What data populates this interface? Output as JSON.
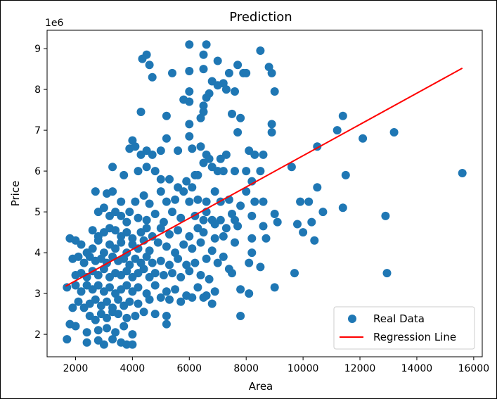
{
  "chart_data": {
    "type": "scatter",
    "title": "Prediction",
    "xlabel": "Area",
    "ylabel": "Price",
    "y_offset_label": "1e6",
    "xlim": [
      1000,
      16300
    ],
    "ylim": [
      1.45,
      9.45
    ],
    "x_ticks": [
      2000,
      4000,
      6000,
      8000,
      10000,
      12000,
      14000,
      16000
    ],
    "y_ticks": [
      2,
      3,
      4,
      5,
      6,
      7,
      8,
      9
    ],
    "grid": false,
    "legend_position": "lower-right",
    "colors": {
      "points": "#1f77b4",
      "line": "#ff0000"
    },
    "series": [
      {
        "name": "Real Data",
        "kind": "scatter",
        "points": [
          [
            6000,
            9.1
          ],
          [
            6600,
            9.1
          ],
          [
            4500,
            8.85
          ],
          [
            6500,
            8.85
          ],
          [
            4350,
            8.75
          ],
          [
            4600,
            8.6
          ],
          [
            7000,
            8.7
          ],
          [
            8500,
            8.95
          ],
          [
            7700,
            8.6
          ],
          [
            7400,
            8.4
          ],
          [
            7900,
            8.4
          ],
          [
            8800,
            8.55
          ],
          [
            8900,
            8.4
          ],
          [
            8000,
            8.4
          ],
          [
            4700,
            8.3
          ],
          [
            5400,
            8.4
          ],
          [
            6000,
            8.45
          ],
          [
            6500,
            8.5
          ],
          [
            6800,
            8.2
          ],
          [
            7200,
            8.15
          ],
          [
            6000,
            7.95
          ],
          [
            6700,
            7.9
          ],
          [
            5800,
            7.75
          ],
          [
            6000,
            7.7
          ],
          [
            6600,
            7.8
          ],
          [
            6500,
            7.6
          ],
          [
            7000,
            8.1
          ],
          [
            9000,
            7.95
          ],
          [
            7300,
            8.0
          ],
          [
            7600,
            7.95
          ],
          [
            4300,
            7.45
          ],
          [
            5200,
            7.35
          ],
          [
            6000,
            7.15
          ],
          [
            6500,
            7.45
          ],
          [
            6400,
            7.3
          ],
          [
            7500,
            7.4
          ],
          [
            7800,
            7.3
          ],
          [
            8900,
            7.15
          ],
          [
            8900,
            6.95
          ],
          [
            7700,
            6.95
          ],
          [
            4300,
            6.4
          ],
          [
            3900,
            6.55
          ],
          [
            4000,
            6.75
          ],
          [
            4100,
            6.6
          ],
          [
            4500,
            6.5
          ],
          [
            4700,
            6.4
          ],
          [
            5000,
            6.5
          ],
          [
            5200,
            6.8
          ],
          [
            5600,
            6.5
          ],
          [
            6000,
            6.85
          ],
          [
            6100,
            6.55
          ],
          [
            6400,
            6.6
          ],
          [
            6600,
            6.4
          ],
          [
            6700,
            6.3
          ],
          [
            7000,
            6.0
          ],
          [
            7100,
            6.3
          ],
          [
            7300,
            6.4
          ],
          [
            8100,
            6.5
          ],
          [
            8300,
            6.4
          ],
          [
            8600,
            6.4
          ],
          [
            3300,
            6.1
          ],
          [
            3700,
            5.9
          ],
          [
            4200,
            6.0
          ],
          [
            4500,
            6.1
          ],
          [
            4800,
            6.0
          ],
          [
            5000,
            5.8
          ],
          [
            5300,
            5.8
          ],
          [
            5600,
            5.6
          ],
          [
            5900,
            5.75
          ],
          [
            6100,
            5.6
          ],
          [
            6200,
            5.9
          ],
          [
            6300,
            5.9
          ],
          [
            6500,
            6.2
          ],
          [
            6800,
            6.1
          ],
          [
            7200,
            6.0
          ],
          [
            7600,
            6.0
          ],
          [
            8000,
            6.0
          ],
          [
            8200,
            5.75
          ],
          [
            8500,
            6.0
          ],
          [
            2700,
            5.5
          ],
          [
            3100,
            5.45
          ],
          [
            3300,
            5.5
          ],
          [
            3600,
            5.25
          ],
          [
            3900,
            5.0
          ],
          [
            4100,
            5.25
          ],
          [
            4400,
            5.4
          ],
          [
            4600,
            5.2
          ],
          [
            5000,
            5.5
          ],
          [
            5200,
            5.25
          ],
          [
            5500,
            5.3
          ],
          [
            5800,
            5.5
          ],
          [
            6000,
            5.25
          ],
          [
            6300,
            5.3
          ],
          [
            6600,
            5.25
          ],
          [
            6900,
            5.5
          ],
          [
            7100,
            5.25
          ],
          [
            7400,
            5.3
          ],
          [
            7800,
            5.15
          ],
          [
            8000,
            5.5
          ],
          [
            8300,
            5.25
          ],
          [
            8600,
            5.25
          ],
          [
            2800,
            5.0
          ],
          [
            3000,
            5.1
          ],
          [
            3200,
            4.9
          ],
          [
            3400,
            5.0
          ],
          [
            3600,
            4.9
          ],
          [
            3800,
            4.75
          ],
          [
            4200,
            4.85
          ],
          [
            4500,
            4.8
          ],
          [
            4800,
            4.95
          ],
          [
            5100,
            4.75
          ],
          [
            5400,
            5.0
          ],
          [
            5700,
            4.85
          ],
          [
            6200,
            4.9
          ],
          [
            6500,
            4.8
          ],
          [
            6800,
            4.8
          ],
          [
            7100,
            4.8
          ],
          [
            7500,
            4.95
          ],
          [
            8200,
            4.9
          ],
          [
            8600,
            4.65
          ],
          [
            9000,
            4.95
          ],
          [
            2600,
            4.55
          ],
          [
            2800,
            4.4
          ],
          [
            3000,
            4.5
          ],
          [
            3200,
            4.6
          ],
          [
            3400,
            4.55
          ],
          [
            3600,
            4.4
          ],
          [
            3800,
            4.5
          ],
          [
            4000,
            4.35
          ],
          [
            4300,
            4.5
          ],
          [
            4500,
            4.6
          ],
          [
            4700,
            4.4
          ],
          [
            5000,
            4.6
          ],
          [
            5300,
            4.45
          ],
          [
            5600,
            4.55
          ],
          [
            6000,
            4.4
          ],
          [
            6300,
            4.6
          ],
          [
            6500,
            4.5
          ],
          [
            6900,
            4.35
          ],
          [
            7200,
            4.4
          ],
          [
            7700,
            4.65
          ],
          [
            8200,
            4.35
          ],
          [
            8700,
            4.35
          ],
          [
            1800,
            4.35
          ],
          [
            2000,
            4.3
          ],
          [
            2200,
            4.2
          ],
          [
            2400,
            4.0
          ],
          [
            2600,
            4.1
          ],
          [
            2800,
            4.3
          ],
          [
            3000,
            4.0
          ],
          [
            3200,
            4.2
          ],
          [
            3400,
            4.1
          ],
          [
            3600,
            4.25
          ],
          [
            3800,
            4.0
          ],
          [
            4000,
            4.2
          ],
          [
            4200,
            4.1
          ],
          [
            4400,
            4.3
          ],
          [
            4600,
            4.05
          ],
          [
            4900,
            4.25
          ],
          [
            5200,
            4.15
          ],
          [
            5500,
            4.0
          ],
          [
            5800,
            4.2
          ],
          [
            6100,
            4.1
          ],
          [
            6400,
            4.25
          ],
          [
            6800,
            4.05
          ],
          [
            7200,
            3.9
          ],
          [
            7600,
            4.25
          ],
          [
            8200,
            4.0
          ],
          [
            1900,
            3.85
          ],
          [
            2100,
            3.9
          ],
          [
            2300,
            3.75
          ],
          [
            2500,
            3.9
          ],
          [
            2700,
            3.8
          ],
          [
            2900,
            3.85
          ],
          [
            3100,
            3.75
          ],
          [
            3300,
            3.9
          ],
          [
            3500,
            3.8
          ],
          [
            3700,
            3.85
          ],
          [
            3900,
            3.7
          ],
          [
            4100,
            3.85
          ],
          [
            4300,
            3.75
          ],
          [
            4500,
            3.9
          ],
          [
            4700,
            3.75
          ],
          [
            5000,
            3.8
          ],
          [
            5300,
            3.7
          ],
          [
            5600,
            3.85
          ],
          [
            5900,
            3.7
          ],
          [
            6200,
            3.75
          ],
          [
            6600,
            3.85
          ],
          [
            7000,
            3.75
          ],
          [
            7400,
            3.6
          ],
          [
            8100,
            3.75
          ],
          [
            8500,
            3.65
          ],
          [
            2000,
            3.45
          ],
          [
            2200,
            3.5
          ],
          [
            2400,
            3.4
          ],
          [
            2600,
            3.55
          ],
          [
            2800,
            3.45
          ],
          [
            3000,
            3.6
          ],
          [
            3200,
            3.4
          ],
          [
            3400,
            3.5
          ],
          [
            3600,
            3.45
          ],
          [
            3800,
            3.55
          ],
          [
            4000,
            3.4
          ],
          [
            4200,
            3.5
          ],
          [
            4400,
            3.6
          ],
          [
            4600,
            3.4
          ],
          [
            4800,
            3.5
          ],
          [
            5100,
            3.45
          ],
          [
            5400,
            3.5
          ],
          [
            5700,
            3.4
          ],
          [
            6000,
            3.55
          ],
          [
            6400,
            3.45
          ],
          [
            6700,
            3.35
          ],
          [
            7500,
            3.5
          ],
          [
            7800,
            3.1
          ],
          [
            8100,
            3.0
          ],
          [
            9000,
            3.15
          ],
          [
            1700,
            3.15
          ],
          [
            2000,
            3.2
          ],
          [
            2200,
            3.05
          ],
          [
            2400,
            3.2
          ],
          [
            2600,
            3.1
          ],
          [
            2800,
            3.2
          ],
          [
            3000,
            3.05
          ],
          [
            3200,
            3.15
          ],
          [
            3400,
            3.0
          ],
          [
            3600,
            3.1
          ],
          [
            3800,
            3.2
          ],
          [
            4000,
            3.05
          ],
          [
            4200,
            3.15
          ],
          [
            4500,
            3.0
          ],
          [
            4800,
            3.2
          ],
          [
            5200,
            3.05
          ],
          [
            5500,
            3.1
          ],
          [
            5900,
            2.95
          ],
          [
            6300,
            3.15
          ],
          [
            6600,
            2.95
          ],
          [
            6900,
            3.05
          ],
          [
            2100,
            2.8
          ],
          [
            2300,
            2.65
          ],
          [
            2500,
            2.75
          ],
          [
            2700,
            2.85
          ],
          [
            2900,
            2.7
          ],
          [
            3100,
            2.8
          ],
          [
            3300,
            2.65
          ],
          [
            3500,
            2.85
          ],
          [
            3700,
            2.7
          ],
          [
            3900,
            2.8
          ],
          [
            4200,
            2.75
          ],
          [
            4600,
            2.85
          ],
          [
            5000,
            2.9
          ],
          [
            5300,
            2.85
          ],
          [
            5700,
            2.8
          ],
          [
            6100,
            2.9
          ],
          [
            6500,
            2.9
          ],
          [
            6800,
            2.75
          ],
          [
            1900,
            2.65
          ],
          [
            2500,
            2.45
          ],
          [
            2700,
            2.35
          ],
          [
            2900,
            2.5
          ],
          [
            3100,
            2.4
          ],
          [
            3300,
            2.55
          ],
          [
            3500,
            2.5
          ],
          [
            3800,
            2.4
          ],
          [
            4100,
            2.45
          ],
          [
            4400,
            2.55
          ],
          [
            4800,
            2.5
          ],
          [
            5200,
            2.45
          ],
          [
            7800,
            2.45
          ],
          [
            1800,
            2.25
          ],
          [
            2000,
            2.2
          ],
          [
            2400,
            2.05
          ],
          [
            2800,
            2.1
          ],
          [
            3100,
            2.15
          ],
          [
            3400,
            2.05
          ],
          [
            3700,
            2.2
          ],
          [
            4000,
            2.0
          ],
          [
            5200,
            2.25
          ],
          [
            1700,
            1.88
          ],
          [
            2400,
            1.8
          ],
          [
            2800,
            1.85
          ],
          [
            3000,
            1.75
          ],
          [
            3300,
            1.88
          ],
          [
            3600,
            1.8
          ],
          [
            3800,
            1.75
          ],
          [
            4000,
            1.75
          ],
          [
            6600,
            5.0
          ],
          [
            6900,
            4.7
          ],
          [
            7300,
            4.6
          ],
          [
            7600,
            4.8
          ],
          [
            9100,
            4.75
          ],
          [
            9600,
            6.1
          ],
          [
            9700,
            3.5
          ],
          [
            9800,
            4.7
          ],
          [
            9900,
            5.25
          ],
          [
            10000,
            4.5
          ],
          [
            10200,
            5.25
          ],
          [
            10300,
            4.75
          ],
          [
            10400,
            4.3
          ],
          [
            10500,
            6.6
          ],
          [
            10500,
            5.6
          ],
          [
            10700,
            5.0
          ],
          [
            11200,
            7.0
          ],
          [
            11400,
            7.35
          ],
          [
            11400,
            5.1
          ],
          [
            11500,
            5.9
          ],
          [
            12100,
            6.8
          ],
          [
            12900,
            4.9
          ],
          [
            12950,
            3.5
          ],
          [
            13200,
            6.95
          ],
          [
            15600,
            5.95
          ]
        ]
      },
      {
        "name": "Regression Line",
        "kind": "line",
        "points": [
          [
            1650,
            3.18
          ],
          [
            15600,
            8.52
          ]
        ]
      }
    ]
  }
}
